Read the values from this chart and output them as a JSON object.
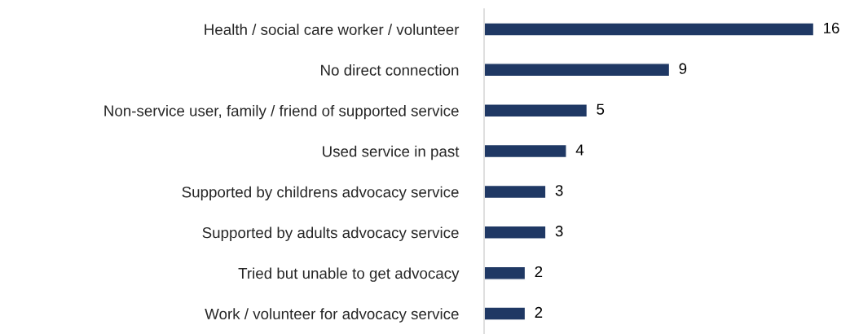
{
  "chart_data": {
    "type": "bar",
    "orientation": "horizontal",
    "categories": [
      "Health / social care worker / volunteer",
      "No direct connection",
      "Non-service user, family / friend of supported service",
      "Used service in past",
      "Supported by childrens advocacy service",
      "Supported by adults advocacy service",
      "Tried but unable to get advocacy",
      "Work / volunteer for advocacy service"
    ],
    "values": [
      16,
      9,
      5,
      4,
      3,
      3,
      2,
      2
    ],
    "color": "#1f3864",
    "data_labels": true,
    "tick_labels": "y",
    "grid": false,
    "legend": false
  }
}
